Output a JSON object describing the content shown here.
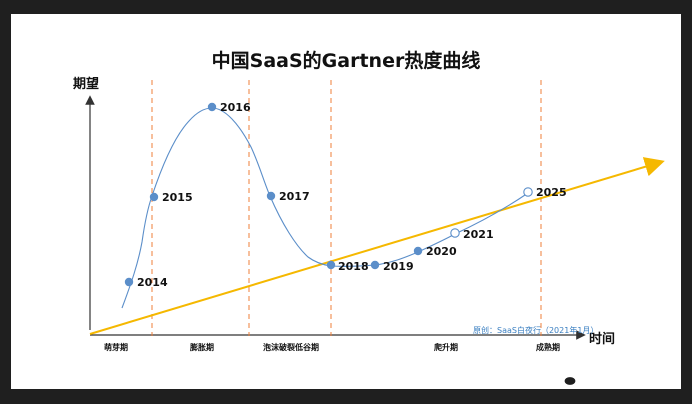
{
  "title": "中国SaaS的Gartner热度曲线",
  "y_axis_label": "期望",
  "x_axis_label": "时间",
  "source_note": "原创：SaaS白夜行（2021年1月）",
  "watermark": "SaaS白夜行",
  "colors": {
    "curve": "#5b8ec9",
    "point_fill": "#5b8ec9",
    "trend": "#f5b800",
    "divider": "#ef7f3a",
    "axis": "#333333"
  },
  "phases": [
    {
      "label": "萌芽期"
    },
    {
      "label": "膨胀期"
    },
    {
      "label": "泡沫破裂低谷期"
    },
    {
      "label": "爬升期"
    },
    {
      "label": "成熟期"
    }
  ],
  "years": [
    {
      "label": "2014",
      "hollow": false
    },
    {
      "label": "2015",
      "hollow": false
    },
    {
      "label": "2016",
      "hollow": false
    },
    {
      "label": "2017",
      "hollow": false
    },
    {
      "label": "2018",
      "hollow": false
    },
    {
      "label": "2019",
      "hollow": false
    },
    {
      "label": "2020",
      "hollow": false
    },
    {
      "label": "2021",
      "hollow": true
    },
    {
      "label": "2025",
      "hollow": true
    }
  ]
}
